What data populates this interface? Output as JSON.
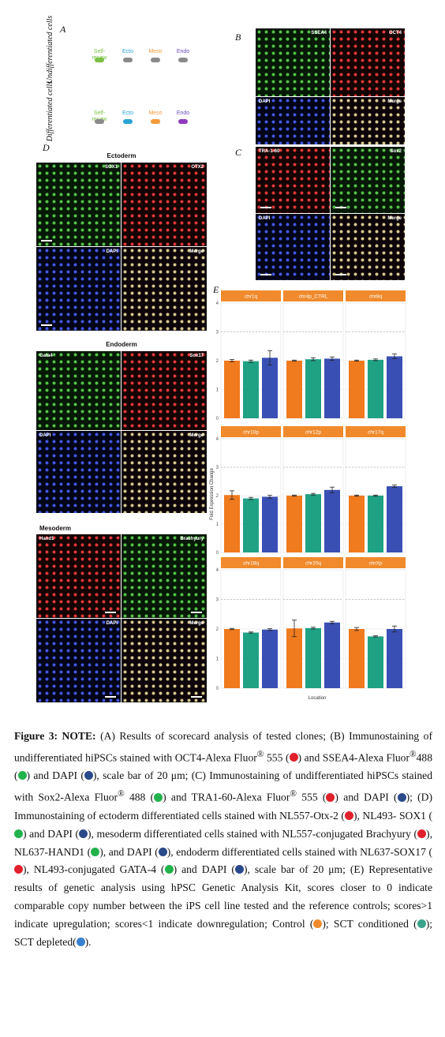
{
  "panels": {
    "A": "A",
    "B": "B",
    "C": "C",
    "D": "D",
    "E": "E"
  },
  "scorecard": {
    "rows": [
      {
        "label": "Undifferentiated cells",
        "items": [
          {
            "name": "Self-renew",
            "color": "#7bc043",
            "pill": "#7bc043"
          },
          {
            "name": "Ecto",
            "color": "#29a3d6",
            "pill": "#8a8a8a"
          },
          {
            "name": "Meso",
            "color": "#f29b3a",
            "pill": "#8a8a8a"
          },
          {
            "name": "Endo",
            "color": "#6b4bbd",
            "pill": "#8a8a8a"
          }
        ]
      },
      {
        "label": "Differentiated cells",
        "items": [
          {
            "name": "Self-renew",
            "color": "#7bc043",
            "pill": "#8a8a8a"
          },
          {
            "name": "Ecto",
            "color": "#29a3d6",
            "pill": "#29a3d6"
          },
          {
            "name": "Meso",
            "color": "#f29b3a",
            "pill": "#f29b3a"
          },
          {
            "name": "Endo",
            "color": "#6b4bbd",
            "pill": "#8e3bbd"
          }
        ]
      }
    ]
  },
  "panel_b": {
    "labels": [
      "SSEA4",
      "OCT4",
      "DAPI",
      "Merge"
    ]
  },
  "panel_c": {
    "labels": [
      "TRA-1-60",
      "Sox2",
      "DAPI",
      "Merge"
    ]
  },
  "panel_d": {
    "ectoderm": {
      "title": "Ectoderm",
      "labels": [
        "SOX1",
        "OTX2",
        "DAPI",
        "Merge"
      ]
    },
    "endoderm": {
      "title": "Endoderm",
      "labels": [
        "Gata4",
        "Sox17",
        "DAPI",
        "Merge"
      ]
    },
    "mesoderm": {
      "title": "Mesoderm",
      "labels": [
        "Hand1",
        "Brachyury",
        "DAPI",
        "Merge"
      ]
    }
  },
  "chart_data": {
    "type": "bar",
    "ylabel": "Fold Expression Change",
    "xlabel": "Location",
    "ylim": [
      0,
      4
    ],
    "yticks": [
      0,
      1,
      2,
      3,
      4
    ],
    "reference_line": 3,
    "grid": true,
    "series_colors": [
      "#f07a1e",
      "#1fa184",
      "#3a4fb4"
    ],
    "series": [
      {
        "name": "Control"
      },
      {
        "name": "SCT conditioned"
      },
      {
        "name": "SCT depleted"
      }
    ],
    "facets": [
      {
        "name": "chr1q",
        "values": [
          2.0,
          1.98,
          2.1
        ],
        "errors": [
          0.04,
          0.04,
          0.25
        ]
      },
      {
        "name": "chr4p_CTRL",
        "values": [
          2.0,
          2.05,
          2.07
        ],
        "errors": [
          0.02,
          0.05,
          0.06
        ]
      },
      {
        "name": "chr8q",
        "values": [
          2.0,
          2.03,
          2.15
        ],
        "errors": [
          0.02,
          0.03,
          0.08
        ]
      },
      {
        "name": "chr10p",
        "values": [
          2.02,
          1.9,
          1.96
        ],
        "errors": [
          0.15,
          0.04,
          0.05
        ]
      },
      {
        "name": "chr12p",
        "values": [
          2.0,
          2.05,
          2.2
        ],
        "errors": [
          0.02,
          0.03,
          0.1
        ]
      },
      {
        "name": "chr17q",
        "values": [
          2.0,
          2.0,
          2.33
        ],
        "errors": [
          0.02,
          0.02,
          0.04
        ]
      },
      {
        "name": "chr18q",
        "values": [
          2.0,
          1.88,
          1.98
        ],
        "errors": [
          0.02,
          0.02,
          0.03
        ]
      },
      {
        "name": "chr20q",
        "values": [
          2.02,
          2.03,
          2.22
        ],
        "errors": [
          0.28,
          0.03,
          0.04
        ]
      },
      {
        "name": "chrXp",
        "values": [
          2.0,
          1.75,
          2.0
        ],
        "errors": [
          0.05,
          0.02,
          0.1
        ]
      }
    ]
  },
  "caption": {
    "figure_label": "Figure 3: NOTE:",
    "t1": " (A) Results of scorecard analysis of tested clones; (B) Immunostaining of undifferentiated hiPSCs stained with OCT4-Alexa Fluor",
    "reg": "®",
    "t2": " 555 (",
    "t3": ") and SSEA4-Alexa Fluor",
    "t4": "488 (",
    "t5": ") and DAPI (",
    "t6": "), scale bar of 20 μm; (C) Immunostaining of undifferentiated hiPSCs stained with Sox2-Alexa Fluor",
    "t7": " 488 (",
    "t8": ") and TRA1-60-Alexa Fluor",
    "t9": " 555 (",
    "t10": ") and DAPI (",
    "t11": "); (D) Immunostaining of ectoderm differentiated cells stained with NL557-Otx-2 (",
    "t12": "), NL493- SOX1 (",
    "t13": ") and DAPI (",
    "t14": "), mesoderm differentiated cells stained with NL557-conjugated Brachyury (",
    "t15": "), NL637-HAND1 (",
    "t16": "), and DAPI (",
    "t17": "), endoderm differentiated cells stained with NL637-SOX17 (",
    "t18": "), NL493-conjugated GATA-4 (",
    "t19": ") and DAPI (",
    "t20": "), scale bar of 20 μm; (E) Representative results of genetic analysis using hPSC Genetic Analysis Kit, scores closer to 0 indicate comparable copy number between the iPS cell line tested and the reference controls; scores>1 indicate upregulation; scores<1 indicate downregulation; Control (",
    "t21": "); SCT conditioned (",
    "t22": "); SCT depleted(",
    "t23": ").",
    "dot_red": "#e0202a",
    "dot_green": "#22b24c",
    "dot_blue": "#2a4a8a",
    "dot_orange": "#f08a2c",
    "dot_teal": "#3aa38a",
    "dot_lightblue": "#3a80d0"
  }
}
